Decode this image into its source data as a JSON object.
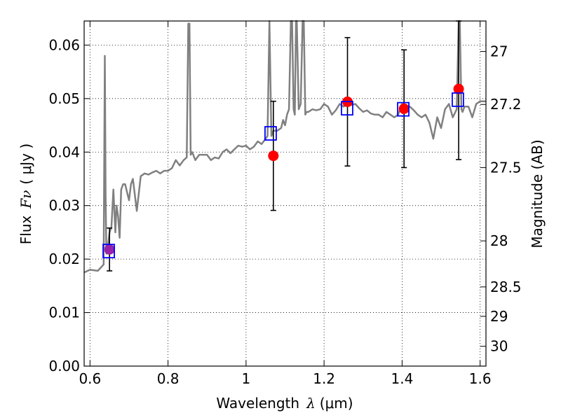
{
  "chart_data": {
    "type": "scatter",
    "title": "",
    "xlabel": {
      "prefix": "Wavelength",
      "symbol": "λ",
      "unit": "(μm)"
    },
    "ylabel": {
      "prefix": "Flux",
      "symbol": "Fν",
      "unit": "( μJy )"
    },
    "y2label": "Magnitude (AB)",
    "xlim": [
      0.585,
      1.615
    ],
    "ylim": [
      0.0,
      0.0645
    ],
    "grid": true,
    "x_ticks": [
      0.6,
      0.8,
      1.0,
      1.2,
      1.4,
      1.6
    ],
    "x_tick_labels": [
      "0.6",
      "0.8",
      "1",
      "1.2",
      "1.4",
      "1.6"
    ],
    "y_ticks": [
      0.0,
      0.01,
      0.02,
      0.03,
      0.04,
      0.05,
      0.06
    ],
    "y_tick_labels": [
      "0.00",
      "0.01",
      "0.02",
      "0.03",
      "0.04",
      "0.05",
      "0.06"
    ],
    "y2_ticks": [
      {
        "label": "27",
        "flux": 0.0588
      },
      {
        "label": "27.2",
        "flux": 0.0489
      },
      {
        "label": "27.5",
        "flux": 0.0371
      },
      {
        "label": "28",
        "flux": 0.0234
      },
      {
        "label": "28.5",
        "flux": 0.0148
      },
      {
        "label": "29",
        "flux": 0.0093
      },
      {
        "label": "30",
        "flux": 0.0037
      }
    ],
    "colors": {
      "model": "#808080",
      "observed": "#ff0000",
      "model_photometry": "#0000ff",
      "errorbar": "#000000",
      "overlap": "#9922aa"
    },
    "series": [
      {
        "kind": "model_spectrum",
        "x": [
          0.585,
          0.6,
          0.62,
          0.635,
          0.638,
          0.64,
          0.642,
          0.645,
          0.65,
          0.655,
          0.66,
          0.665,
          0.668,
          0.672,
          0.676,
          0.68,
          0.685,
          0.69,
          0.7,
          0.705,
          0.71,
          0.72,
          0.73,
          0.74,
          0.75,
          0.76,
          0.77,
          0.78,
          0.79,
          0.8,
          0.81,
          0.82,
          0.83,
          0.84,
          0.848,
          0.852,
          0.855,
          0.858,
          0.862,
          0.87,
          0.88,
          0.89,
          0.9,
          0.91,
          0.92,
          0.93,
          0.94,
          0.95,
          0.96,
          0.97,
          0.98,
          0.99,
          1.0,
          1.01,
          1.02,
          1.03,
          1.04,
          1.05,
          1.055,
          1.06,
          1.065,
          1.07,
          1.08,
          1.09,
          1.095,
          1.1,
          1.105,
          1.11,
          1.115,
          1.118,
          1.122,
          1.125,
          1.128,
          1.13,
          1.135,
          1.14,
          1.145,
          1.148,
          1.152,
          1.155,
          1.16,
          1.17,
          1.18,
          1.19,
          1.2,
          1.21,
          1.22,
          1.23,
          1.24,
          1.25,
          1.26,
          1.27,
          1.28,
          1.29,
          1.3,
          1.31,
          1.32,
          1.33,
          1.34,
          1.35,
          1.36,
          1.37,
          1.38,
          1.39,
          1.4,
          1.41,
          1.42,
          1.43,
          1.44,
          1.45,
          1.46,
          1.47,
          1.48,
          1.49,
          1.5,
          1.51,
          1.52,
          1.53,
          1.54,
          1.545,
          1.548,
          1.552,
          1.555,
          1.56,
          1.57,
          1.58,
          1.59,
          1.6,
          1.615
        ],
        "y": [
          0.0175,
          0.018,
          0.0178,
          0.019,
          0.058,
          0.032,
          0.021,
          0.022,
          0.025,
          0.026,
          0.033,
          0.025,
          0.03,
          0.028,
          0.024,
          0.033,
          0.034,
          0.034,
          0.031,
          0.034,
          0.035,
          0.029,
          0.0355,
          0.036,
          0.0358,
          0.0362,
          0.0365,
          0.036,
          0.0365,
          0.0365,
          0.037,
          0.0385,
          0.0375,
          0.0385,
          0.039,
          0.064,
          0.064,
          0.0395,
          0.04,
          0.0385,
          0.0395,
          0.0395,
          0.0395,
          0.0385,
          0.039,
          0.0388,
          0.04,
          0.0405,
          0.0398,
          0.0405,
          0.0412,
          0.041,
          0.0412,
          0.0405,
          0.041,
          0.042,
          0.0415,
          0.0425,
          0.043,
          0.065,
          0.043,
          0.044,
          0.044,
          0.0445,
          0.046,
          0.045,
          0.047,
          0.048,
          0.065,
          0.065,
          0.048,
          0.047,
          0.065,
          0.065,
          0.048,
          0.049,
          0.065,
          0.065,
          0.047,
          0.0475,
          0.0475,
          0.048,
          0.0478,
          0.048,
          0.049,
          0.0485,
          0.047,
          0.0478,
          0.049,
          0.0485,
          0.049,
          0.0488,
          0.049,
          0.0482,
          0.0475,
          0.0478,
          0.0472,
          0.047,
          0.047,
          0.0465,
          0.0475,
          0.047,
          0.0465,
          0.047,
          0.049,
          0.048,
          0.0485,
          0.0478,
          0.047,
          0.0465,
          0.047,
          0.0455,
          0.0425,
          0.0465,
          0.0445,
          0.048,
          0.049,
          0.0465,
          0.048,
          0.065,
          0.065,
          0.048,
          0.0475,
          0.0485,
          0.0485,
          0.0465,
          0.049,
          0.0495,
          0.0495
        ]
      },
      {
        "kind": "observed",
        "x": [
          0.65,
          1.07,
          1.26,
          1.405,
          1.545
        ],
        "y": [
          0.0218,
          0.0393,
          0.0494,
          0.0481,
          0.0518
        ],
        "yerr_low": [
          0.004,
          0.0102,
          0.012,
          0.011,
          0.0132
        ],
        "yerr_high": [
          0.004,
          0.0102,
          0.012,
          0.011,
          0.0132
        ]
      },
      {
        "kind": "model_photometry",
        "x": [
          0.648,
          1.063,
          1.259,
          1.403,
          1.543
        ],
        "y": [
          0.0215,
          0.0435,
          0.0482,
          0.048,
          0.0498
        ]
      }
    ]
  }
}
